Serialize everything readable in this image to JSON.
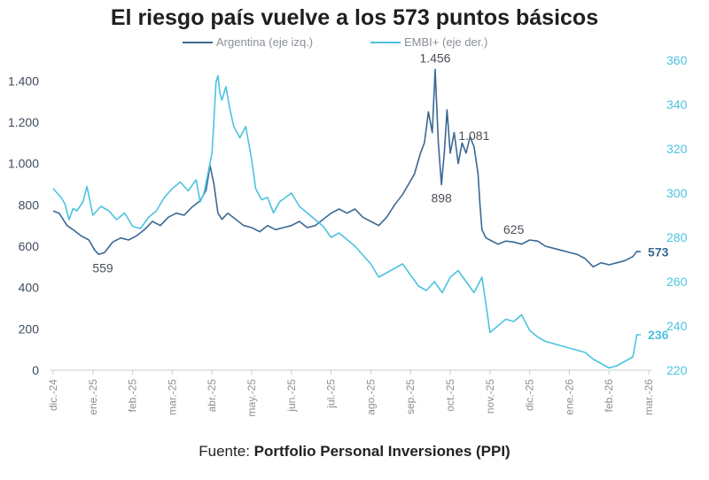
{
  "title": "El riesgo país vuelve a los 573 puntos básicos",
  "source": {
    "label": "Fuente:",
    "name": "Portfolio Personal Inversiones (PPI)"
  },
  "colors": {
    "argentina": "#3a6893",
    "embi": "#4cc3df",
    "axis_left": "#3f4d5e",
    "axis_right": "#4cc3df",
    "tick": "#8a8f98"
  },
  "chart_data": {
    "type": "line",
    "title": "El riesgo país vuelve a los 573 puntos básicos",
    "x_ticks": [
      "dic.-24",
      "ene.-25",
      "feb.-25",
      "mar.-25",
      "abr.-25",
      "may.-25",
      "jun.-25",
      "jul.-25",
      "ago.-25",
      "sep.-25",
      "oct.-25",
      "nov.-25",
      "dic.-25",
      "ene.-26",
      "feb.-26",
      "mar.-26"
    ],
    "x_range": [
      0,
      15
    ],
    "y_left": {
      "label": "Argentina (eje izq.)",
      "range": [
        0,
        1500
      ],
      "ticks": [
        0,
        200,
        400,
        600,
        800,
        1000,
        1200,
        1400
      ],
      "tick_labels": [
        "0",
        "200",
        "400",
        "600",
        "800",
        "1.000",
        "1.200",
        "1.400"
      ]
    },
    "y_right": {
      "label": "EMBI+ (eje der.)",
      "range": [
        220,
        360
      ],
      "ticks": [
        220,
        240,
        260,
        280,
        300,
        320,
        340,
        360
      ],
      "tick_labels": [
        "220",
        "240",
        "260",
        "280",
        "300",
        "320",
        "340",
        "360"
      ]
    },
    "series": [
      {
        "name": "Argentina (eje izq.)",
        "axis": "left",
        "x": [
          0,
          0.15,
          0.35,
          0.5,
          0.7,
          0.9,
          1.05,
          1.15,
          1.3,
          1.5,
          1.7,
          1.9,
          2.1,
          2.3,
          2.5,
          2.7,
          2.9,
          3.1,
          3.3,
          3.5,
          3.7,
          3.85,
          3.95,
          4.05,
          4.15,
          4.25,
          4.4,
          4.6,
          4.8,
          5.0,
          5.2,
          5.4,
          5.6,
          5.8,
          6.0,
          6.2,
          6.4,
          6.6,
          6.8,
          7.0,
          7.2,
          7.4,
          7.6,
          7.8,
          8.0,
          8.2,
          8.4,
          8.6,
          8.8,
          8.95,
          9.1,
          9.25,
          9.35,
          9.45,
          9.55,
          9.62,
          9.7,
          9.78,
          9.85,
          9.92,
          10.0,
          10.1,
          10.2,
          10.3,
          10.4,
          10.5,
          10.6,
          10.7,
          10.75,
          10.8,
          10.9,
          11.0,
          11.2,
          11.4,
          11.6,
          11.8,
          12.0,
          12.2,
          12.4,
          12.6,
          12.8,
          13.0,
          13.2,
          13.4,
          13.6,
          13.8,
          14.0,
          14.2,
          14.4,
          14.6,
          14.7,
          14.8
        ],
        "values": [
          770,
          760,
          700,
          680,
          650,
          630,
          580,
          560,
          570,
          620,
          640,
          630,
          650,
          680,
          720,
          700,
          740,
          760,
          750,
          790,
          820,
          870,
          990,
          900,
          760,
          730,
          760,
          730,
          700,
          690,
          670,
          700,
          680,
          690,
          700,
          720,
          690,
          700,
          730,
          760,
          780,
          760,
          780,
          740,
          720,
          700,
          740,
          800,
          850,
          900,
          950,
          1050,
          1100,
          1250,
          1150,
          1456,
          1100,
          898,
          1050,
          1260,
          1050,
          1150,
          1000,
          1100,
          1050,
          1130,
          1081,
          950,
          800,
          680,
          640,
          630,
          610,
          625,
          620,
          610,
          630,
          625,
          600,
          590,
          580,
          570,
          560,
          540,
          500,
          520,
          510,
          520,
          530,
          550,
          575,
          573
        ]
      },
      {
        "name": "EMBI+ (eje der.)",
        "axis": "right",
        "x": [
          0,
          0.1,
          0.2,
          0.3,
          0.4,
          0.5,
          0.6,
          0.75,
          0.85,
          1.0,
          1.2,
          1.4,
          1.6,
          1.8,
          2.0,
          2.2,
          2.4,
          2.6,
          2.8,
          3.0,
          3.2,
          3.4,
          3.6,
          3.7,
          3.8,
          3.9,
          4.0,
          4.05,
          4.1,
          4.15,
          4.2,
          4.25,
          4.35,
          4.45,
          4.55,
          4.7,
          4.85,
          5.0,
          5.1,
          5.25,
          5.4,
          5.55,
          5.7,
          5.85,
          6.0,
          6.2,
          6.4,
          6.6,
          6.8,
          7.0,
          7.2,
          7.4,
          7.6,
          7.8,
          8.0,
          8.2,
          8.4,
          8.6,
          8.8,
          9.0,
          9.2,
          9.4,
          9.6,
          9.8,
          10.0,
          10.2,
          10.4,
          10.6,
          10.8,
          10.9,
          11.0,
          11.2,
          11.4,
          11.6,
          11.8,
          12.0,
          12.2,
          12.4,
          12.6,
          12.8,
          13.0,
          13.2,
          13.4,
          13.6,
          13.8,
          14.0,
          14.2,
          14.4,
          14.5,
          14.6,
          14.7,
          14.8
        ],
        "values": [
          302,
          300,
          298,
          295,
          288,
          293,
          292,
          296,
          303,
          290,
          294,
          292,
          288,
          291,
          285,
          284,
          289,
          292,
          298,
          302,
          305,
          301,
          306,
          296,
          300,
          309,
          318,
          333,
          350,
          353,
          345,
          342,
          348,
          338,
          330,
          325,
          330,
          315,
          302,
          297,
          298,
          291,
          296,
          298,
          300,
          294,
          291,
          288,
          285,
          280,
          282,
          279,
          276,
          272,
          268,
          262,
          264,
          266,
          268,
          263,
          258,
          256,
          260,
          255,
          262,
          265,
          260,
          255,
          262,
          250,
          237,
          240,
          243,
          242,
          245,
          238,
          235,
          233,
          232,
          231,
          230,
          229,
          228,
          225,
          223,
          221,
          222,
          224,
          225,
          226,
          236,
          236
        ]
      }
    ],
    "annotations": [
      {
        "text": "559",
        "series": "Argentina (eje izq.)",
        "x": 1.25,
        "y": 559,
        "pos": "below"
      },
      {
        "text": "1.456",
        "series": "Argentina (eje izq.)",
        "x": 9.62,
        "y": 1456,
        "pos": "above"
      },
      {
        "text": "898",
        "series": "Argentina (eje izq.)",
        "x": 9.78,
        "y": 898,
        "pos": "below"
      },
      {
        "text": "1.081",
        "series": "Argentina (eje izq.)",
        "x": 10.6,
        "y": 1081,
        "pos": "above"
      },
      {
        "text": "625",
        "series": "Argentina (eje izq.)",
        "x": 11.6,
        "y": 625,
        "pos": "above"
      }
    ],
    "end_labels": [
      {
        "text": "573",
        "series": "Argentina (eje izq.)"
      },
      {
        "text": "236",
        "series": "EMBI+ (eje der.)"
      }
    ],
    "legend": "top-center"
  }
}
